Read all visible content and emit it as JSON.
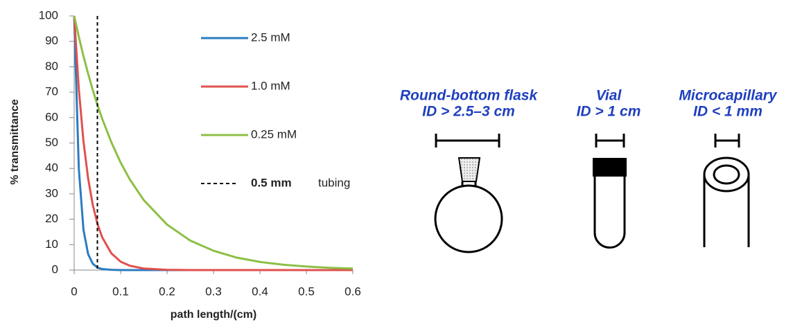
{
  "chart_data": {
    "type": "line",
    "x_label": "path length/(cm)",
    "y_label": "% transmittance",
    "x": [
      0,
      0.01,
      0.02,
      0.03,
      0.04,
      0.05,
      0.06,
      0.08,
      0.1,
      0.12,
      0.15,
      0.2,
      0.25,
      0.3,
      0.35,
      0.4,
      0.45,
      0.5,
      0.55,
      0.6
    ],
    "series": [
      {
        "name": "2.5 mM",
        "color": "#2b7bc0",
        "values": [
          100,
          39.9,
          15.9,
          6.3,
          2.5,
          1.0,
          0.4,
          0.1,
          0,
          0,
          0,
          0,
          0,
          0,
          0,
          0,
          0,
          0,
          0,
          0
        ]
      },
      {
        "name": "1.0 mM",
        "color": "#e0504d",
        "values": [
          100,
          71.2,
          50.7,
          36.1,
          25.7,
          18.3,
          13.0,
          6.6,
          3.3,
          1.7,
          0.6,
          0.1,
          0,
          0,
          0,
          0,
          0,
          0,
          0,
          0
        ]
      },
      {
        "name": "0.25 mM",
        "color": "#8cbf45",
        "values": [
          100,
          91.8,
          84.2,
          77.3,
          70.9,
          65.0,
          59.7,
          50.3,
          42.3,
          35.6,
          27.5,
          17.9,
          11.6,
          7.6,
          4.9,
          3.2,
          2.1,
          1.4,
          0.9,
          0.6
        ]
      }
    ],
    "reference_line": {
      "x": 0.05,
      "name": "0.5 mm",
      "label": "tubing"
    },
    "xlim": [
      0,
      0.6
    ],
    "xticks": [
      0,
      0.1,
      0.2,
      0.3,
      0.4,
      0.5,
      0.6
    ],
    "ylim": [
      0,
      100
    ],
    "yticks": [
      0,
      10,
      20,
      30,
      40,
      50,
      60,
      70,
      80,
      90,
      100
    ]
  },
  "diagram": {
    "vessels": [
      {
        "name": "Round-bottom flask",
        "id": "ID > 2.5–3 cm"
      },
      {
        "name": "Vial",
        "id": "ID > 1 cm"
      },
      {
        "name": "Microcapillary",
        "id": "ID < 1 mm"
      }
    ]
  }
}
